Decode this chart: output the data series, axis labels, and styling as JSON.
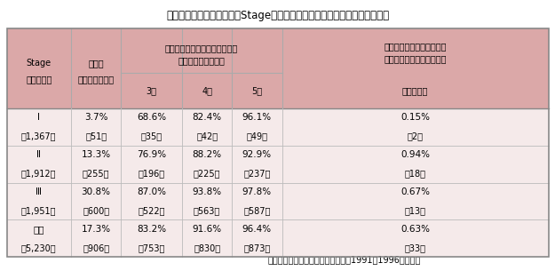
{
  "title": "表７　大腸癌治癒切除後のStage別再発率と術後経過年数別累積再発出現率",
  "footer": "（大腸癌研究会プロジェクト研究、1991～1996年症例）",
  "header_bg": "#dba8a8",
  "table_bg": "#f5eaea",
  "outer_bg": "#ffffff",
  "col_h1_stage": "Stage",
  "col_h2_stage": "（症例数）",
  "col_h1_recu": "再発率",
  "col_h2_recu": "（再発症例数）",
  "col_h1_cumul": "術後経過年数別累積再発出現率",
  "col_h2_cumul": "（累積再発症例数）",
  "col_sub_3yr": "3年",
  "col_sub_4yr": "4年",
  "col_sub_5yr": "5年",
  "col_h1_over5a": "術後５年を超えて出現する",
  "col_h1_over5b": "再発例が全体に占める割合",
  "col_h2_over5": "（症例数）",
  "rows": [
    {
      "stage": "Ⅰ",
      "stage_n": "（1,367）",
      "recurrence_rate": "3.7%",
      "recurrence_n": "（51）",
      "yr3": "68.6%",
      "yr3_n": "（35）",
      "yr4": "82.4%",
      "yr4_n": "（42）",
      "yr5": "96.1%",
      "yr5_n": "（49）",
      "over5": "0.15%",
      "over5_n": "（2）"
    },
    {
      "stage": "Ⅱ",
      "stage_n": "（1,912）",
      "recurrence_rate": "13.3%",
      "recurrence_n": "（255）",
      "yr3": "76.9%",
      "yr3_n": "（196）",
      "yr4": "88.2%",
      "yr4_n": "（225）",
      "yr5": "92.9%",
      "yr5_n": "（237）",
      "over5": "0.94%",
      "over5_n": "（18）"
    },
    {
      "stage": "Ⅲ",
      "stage_n": "（1,951）",
      "recurrence_rate": "30.8%",
      "recurrence_n": "（600）",
      "yr3": "87.0%",
      "yr3_n": "（522）",
      "yr4": "93.8%",
      "yr4_n": "（563）",
      "yr5": "97.8%",
      "yr5_n": "（587）",
      "over5": "0.67%",
      "over5_n": "（13）"
    },
    {
      "stage": "全体",
      "stage_n": "（5,230）",
      "recurrence_rate": "17.3%",
      "recurrence_n": "（906）",
      "yr3": "83.2%",
      "yr3_n": "（753）",
      "yr4": "91.6%",
      "yr4_n": "（830）",
      "yr5": "96.4%",
      "yr5_n": "（873）",
      "over5": "0.63%",
      "over5_n": "（33）"
    }
  ],
  "font_size_title": 8.5,
  "font_size_header": 7.0,
  "font_size_data": 7.5,
  "font_size_footer": 7.0,
  "text_color": "#000000",
  "line_color": "#aaaaaa",
  "border_color": "#888888"
}
